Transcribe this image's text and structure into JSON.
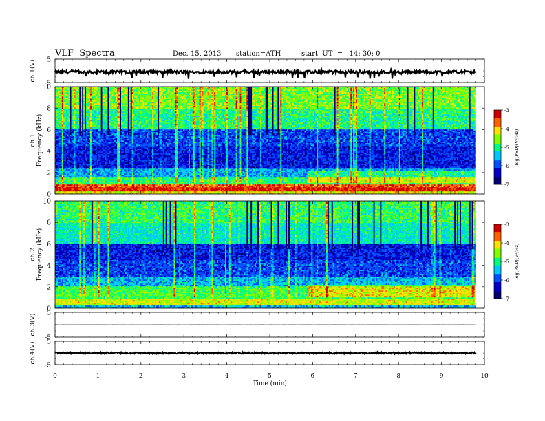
{
  "header": {
    "title": "VLF  Spectra",
    "date": "Dec. 15, 2013",
    "station": "station=ATH",
    "start": "start  UT  =   14: 30: 0"
  },
  "colors": {
    "scale": [
      "#000070",
      "#0000c8",
      "#0050ff",
      "#00c8ff",
      "#00ff80",
      "#80ff00",
      "#ffe000",
      "#ff6000",
      "#d00000",
      "#ffffff"
    ],
    "trace": "#000000"
  },
  "chart_data": [
    {
      "type": "line",
      "name": "ch1",
      "ylabel": "ch.1(V)",
      "ylim": [
        -5,
        5
      ],
      "yticks": [
        "5",
        "-5"
      ],
      "description_values": "noisy waveform around -0.5 V with spikes to about -3 V",
      "mean": -0.5,
      "noise": 0.6,
      "spike_min": -3.5,
      "xlim": [
        0,
        10
      ],
      "data_end": 9.8
    },
    {
      "type": "heatmap",
      "name": "ch1-spectrogram",
      "ylabel": "ch.1\nFrequency  (kHz)",
      "ylim": [
        0,
        10
      ],
      "yticks": [
        "0",
        "2",
        "4",
        "6",
        "8",
        "10"
      ],
      "xlim": [
        0,
        10
      ],
      "data_end": 9.8,
      "colorbar_label": "log(PSD)(V²/Hz)",
      "colorbar_ticks": [
        "-3",
        "-4",
        "-5",
        "-6",
        "-7"
      ],
      "clim": [
        -7,
        -3
      ],
      "bands": [
        {
          "f": [
            0,
            0.3
          ],
          "v": -4.2
        },
        {
          "f": [
            0.3,
            0.6
          ],
          "v": -3.3
        },
        {
          "f": [
            0.6,
            0.9
          ],
          "v": -3.6
        },
        {
          "f": [
            0.9,
            1.5
          ],
          "v": -4.9
        },
        {
          "f": [
            1.5,
            2.5
          ],
          "v": -5.6
        },
        {
          "f": [
            2.5,
            4.5
          ],
          "v": -6.2
        },
        {
          "f": [
            4.5,
            6.0
          ],
          "v": -6.0
        },
        {
          "f": [
            6.0,
            8.0
          ],
          "v": -5.0
        },
        {
          "f": [
            8.0,
            10.0
          ],
          "v": -4.6
        }
      ]
    },
    {
      "type": "heatmap",
      "name": "ch2-spectrogram",
      "ylabel": "ch.2\nFrequency  (kHz)",
      "ylim": [
        0,
        10
      ],
      "yticks": [
        "0",
        "2",
        "4",
        "6",
        "8",
        "10"
      ],
      "xlim": [
        0,
        10
      ],
      "data_end": 9.8,
      "colorbar_label": "log(PSD)(V²/Hz)",
      "colorbar_ticks": [
        "-3",
        "-4",
        "-5",
        "-6",
        "-7"
      ],
      "clim": [
        -7,
        -3
      ],
      "bands": [
        {
          "f": [
            0,
            0.3
          ],
          "v": -5.5
        },
        {
          "f": [
            0.3,
            0.9
          ],
          "v": -4.3
        },
        {
          "f": [
            0.9,
            2.0
          ],
          "v": -4.8
        },
        {
          "f": [
            2.0,
            3.0
          ],
          "v": -5.5
        },
        {
          "f": [
            3.0,
            4.5
          ],
          "v": -6.0
        },
        {
          "f": [
            4.5,
            6.0
          ],
          "v": -6.2
        },
        {
          "f": [
            6.0,
            8.0
          ],
          "v": -5.2
        },
        {
          "f": [
            8.0,
            10.0
          ],
          "v": -4.9
        }
      ]
    },
    {
      "type": "line",
      "name": "ch3",
      "ylabel": "ch.3(V)",
      "ylim": [
        -5,
        5
      ],
      "yticks": [
        "5",
        "-5"
      ],
      "mean": 0,
      "noise": 0.02,
      "spike_min": 0,
      "xlim": [
        0,
        10
      ],
      "data_end": 9.8
    },
    {
      "type": "line",
      "name": "ch4",
      "ylabel": "ch.4(V)",
      "ylim": [
        -5,
        5
      ],
      "yticks": [
        "5",
        "-5"
      ],
      "mean": 0,
      "noise": 0.35,
      "spike_min": 0,
      "xlim": [
        0,
        10
      ],
      "data_end": 9.8
    }
  ],
  "xaxis": {
    "label": "Time  (min)",
    "ticks": [
      "0",
      "1",
      "2",
      "3",
      "4",
      "5",
      "6",
      "7",
      "8",
      "9",
      "10"
    ]
  }
}
